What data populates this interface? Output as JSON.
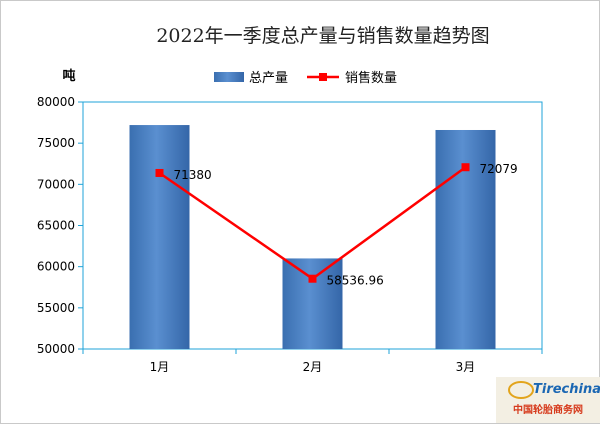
{
  "chart_data": {
    "type": "bar",
    "title": "2022年一季度总产量与销售数量趋势图",
    "ylabel": "吨",
    "categories": [
      "1月",
      "2月",
      "3月"
    ],
    "ylim": [
      50000,
      80000
    ],
    "yticks": [
      50000,
      55000,
      60000,
      65000,
      70000,
      75000,
      80000
    ],
    "grid": false,
    "legend_position": "top",
    "series": [
      {
        "name": "总产量",
        "type": "bar",
        "color": "#3d73b8",
        "values": [
          77200,
          61000,
          76600
        ]
      },
      {
        "name": "销售数量",
        "type": "line",
        "color": "#ff0000",
        "values": [
          71380,
          58536.96,
          72079
        ],
        "data_labels": [
          "71380",
          "58536.96",
          "72079"
        ]
      }
    ]
  },
  "watermark": {
    "brand": "Tirechina.net",
    "label": "中国轮胎商务网"
  }
}
